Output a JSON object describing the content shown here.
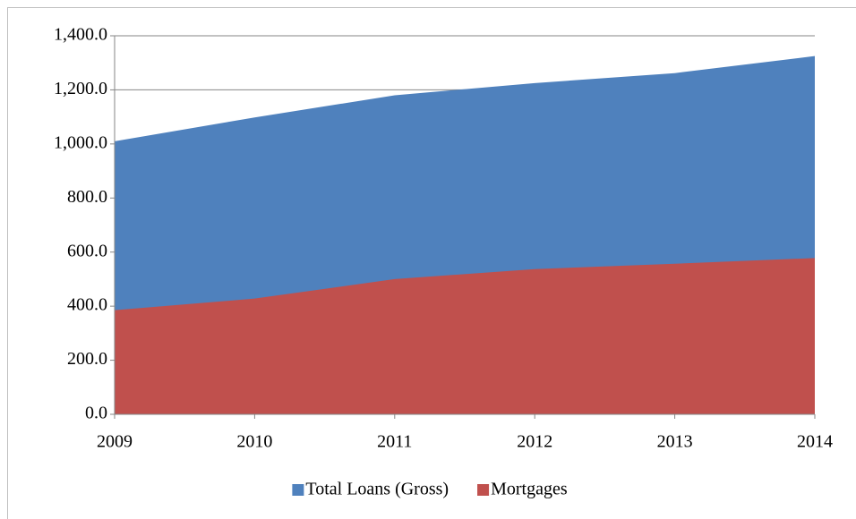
{
  "chart_data": {
    "type": "area",
    "categories": [
      "2009",
      "2010",
      "2011",
      "2012",
      "2013",
      "2014"
    ],
    "series": [
      {
        "name": "Total Loans (Gross)",
        "color": "#4f81bd",
        "values": [
          1010,
          1098,
          1180,
          1225,
          1262,
          1325
        ]
      },
      {
        "name": "Mortgages",
        "color": "#c0504d",
        "values": [
          385,
          428,
          500,
          537,
          557,
          578
        ]
      }
    ],
    "ylim": [
      0,
      1400
    ],
    "yticks": [
      {
        "value": 0,
        "label": "0.0"
      },
      {
        "value": 200,
        "label": "200.0"
      },
      {
        "value": 400,
        "label": "400.0"
      },
      {
        "value": 600,
        "label": "600.0"
      },
      {
        "value": 800,
        "label": "800.0"
      },
      {
        "value": 1000,
        "label": "1,000.0"
      },
      {
        "value": 1200,
        "label": "1,200.0"
      },
      {
        "value": 1400,
        "label": "1,400.0"
      }
    ],
    "grid": true,
    "legend": "bottom"
  }
}
